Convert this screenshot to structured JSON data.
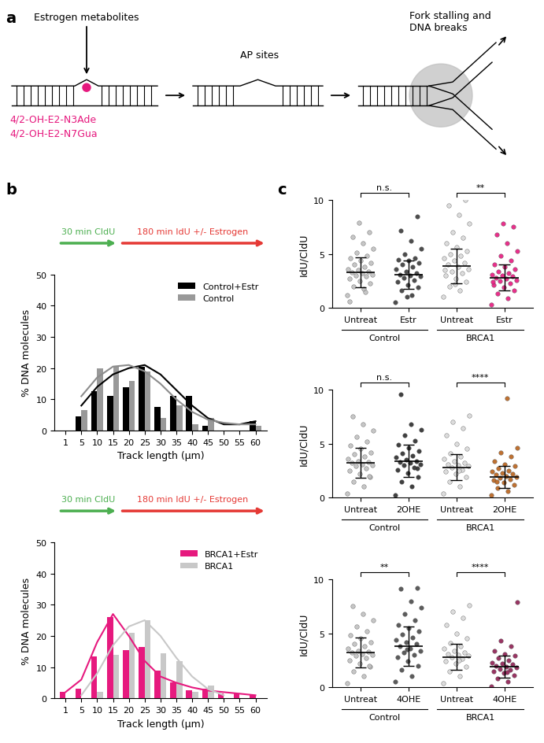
{
  "panel_labels": [
    "a",
    "b",
    "c"
  ],
  "diagram": {
    "top_label": "Estrogen metabolites",
    "adducts": [
      "4/2-OH-E2-N3Ade",
      "4/2-OH-E2-N7Gua"
    ],
    "middle_label": "AP sites",
    "right_label": "Fork stalling and\nDNA breaks"
  },
  "chart_data": [
    {
      "type": "bar",
      "annotations": [
        "30 min CldU",
        "180 min IdU +/- Estrogen"
      ],
      "x_label": "Track length (μm)",
      "y_label": "% DNA molecules",
      "categories": [
        "1",
        "5",
        "10",
        "15",
        "20",
        "25",
        "30",
        "35",
        "40",
        "45",
        "50",
        "55",
        "60"
      ],
      "series": [
        {
          "name": "Control+Estr",
          "type": "bar",
          "color": "#000000",
          "values": [
            0,
            4.5,
            12.5,
            11,
            14,
            20.5,
            7.5,
            11,
            11,
            1.5,
            0,
            0,
            3
          ]
        },
        {
          "name": "Control",
          "type": "bar",
          "color": "#999999",
          "values": [
            0,
            6.5,
            20,
            20.5,
            16,
            19,
            4,
            8,
            2,
            4,
            0,
            0,
            1.5
          ]
        },
        {
          "type": "line",
          "color": "#000000",
          "values": [
            null,
            8,
            14,
            18,
            20,
            21,
            18,
            13,
            8,
            4,
            2,
            2,
            3
          ]
        },
        {
          "type": "line",
          "color": "#8c8c8c",
          "values": [
            null,
            11,
            17,
            20.5,
            21,
            19,
            15,
            10,
            6,
            3.5,
            2.5,
            2,
            2
          ]
        }
      ],
      "ylim": [
        0,
        50
      ],
      "yticks": [
        0,
        10,
        20,
        30,
        40,
        50
      ],
      "legend": "upper right"
    },
    {
      "type": "bar",
      "annotations": [
        "30 min CldU",
        "180 min IdU +/- Estrogen"
      ],
      "x_label": "Track length (μm)",
      "y_label": "% DNA molecules",
      "categories": [
        "1",
        "5",
        "10",
        "15",
        "20",
        "25",
        "30",
        "35",
        "40",
        "45",
        "50",
        "55",
        "60"
      ],
      "series": [
        {
          "name": "BRCA1+Estr",
          "type": "bar",
          "color": "#e6197e",
          "values": [
            2,
            3,
            13.5,
            26,
            15.5,
            16.5,
            9,
            5,
            2.5,
            3,
            1.5,
            1.5,
            1
          ]
        },
        {
          "name": "BRCA1",
          "type": "bar",
          "color": "#c8c8c8",
          "values": [
            0,
            0,
            2,
            14,
            21,
            25,
            14.5,
            12,
            2,
            4,
            0,
            0,
            0
          ]
        },
        {
          "type": "line",
          "color": "#e6197e",
          "values": [
            2,
            6,
            18,
            27,
            20,
            12,
            7,
            5,
            3.5,
            2.5,
            2,
            1.5,
            1
          ]
        },
        {
          "type": "line",
          "color": "#c8c8c8",
          "values": [
            null,
            1,
            8,
            17,
            23,
            25,
            20,
            13,
            7,
            3,
            1,
            null,
            null
          ]
        }
      ],
      "ylim": [
        0,
        50
      ],
      "yticks": [
        0,
        10,
        20,
        30,
        40,
        50
      ],
      "legend": "upper right"
    },
    {
      "type": "dot_plot",
      "y_label": "IdU/CldU",
      "categories": [
        "Untreat",
        "Estr",
        "Untreat",
        "Estr"
      ],
      "group_labels": [
        "Control",
        "BRCA1"
      ],
      "colors": [
        "#c0c0c0",
        "#3a3a3a",
        "#d9d9d9",
        "#e6197e"
      ],
      "values": [
        [
          1.2,
          1.8,
          2.0,
          2.3,
          2.5,
          2.7,
          2.9,
          3.0,
          3.1,
          3.2,
          3.3,
          3.4,
          3.5,
          3.6,
          3.8,
          4.0,
          4.2,
          4.4,
          4.6,
          4.8,
          5.1,
          5.5,
          6.0,
          6.6,
          7.0,
          7.9,
          0.6,
          1.5
        ],
        [
          0.5,
          1.2,
          1.6,
          1.9,
          2.1,
          2.4,
          2.6,
          2.8,
          2.9,
          3.0,
          3.1,
          3.2,
          3.4,
          3.6,
          3.8,
          4.0,
          4.2,
          4.4,
          4.5,
          4.6,
          5.0,
          5.5,
          6.2,
          7.2,
          8.5,
          1.0
        ],
        [
          1.0,
          1.6,
          2.0,
          2.4,
          2.7,
          3.0,
          3.2,
          3.4,
          3.6,
          3.8,
          4.0,
          4.2,
          4.4,
          4.6,
          4.8,
          5.0,
          5.3,
          5.6,
          6.0,
          6.5,
          7.0,
          7.8,
          8.6,
          9.5,
          10.0,
          2.2,
          3.5
        ],
        [
          0.3,
          0.9,
          1.3,
          1.6,
          1.9,
          2.1,
          2.3,
          2.5,
          2.6,
          2.7,
          2.8,
          2.9,
          3.0,
          3.1,
          3.2,
          3.4,
          3.6,
          3.8,
          4.0,
          4.4,
          4.8,
          5.3,
          6.0,
          6.8,
          7.5,
          7.8,
          2.4
        ]
      ],
      "mean": [
        3.3,
        3.1,
        3.9,
        2.8
      ],
      "sd": [
        1.4,
        1.3,
        1.6,
        1.2
      ],
      "significance": [
        {
          "pair": [
            0,
            1
          ],
          "label": "n.s."
        },
        {
          "pair": [
            2,
            3
          ],
          "label": "**"
        }
      ],
      "ylim": [
        0,
        10
      ],
      "yticks": [
        0,
        5,
        10
      ]
    },
    {
      "type": "dot_plot",
      "y_label": "IdU/CldU",
      "categories": [
        "Untreat",
        "2OHE",
        "Untreat",
        "2OHE"
      ],
      "group_labels": [
        "Control",
        "BRCA1"
      ],
      "colors": [
        "#c0c0c0",
        "#2b2b2b",
        "#d9d9d9",
        "#b8621b"
      ],
      "values": [
        [
          0.4,
          1.0,
          1.5,
          1.9,
          2.2,
          2.5,
          2.7,
          2.9,
          3.0,
          3.1,
          3.2,
          3.3,
          3.4,
          3.6,
          3.8,
          4.0,
          4.2,
          4.5,
          4.8,
          5.2,
          5.6,
          6.2,
          6.8,
          7.5,
          2.0
        ],
        [
          0.2,
          1.0,
          1.5,
          1.9,
          2.3,
          2.6,
          2.8,
          3.0,
          3.1,
          3.2,
          3.3,
          3.4,
          3.5,
          3.7,
          3.9,
          4.1,
          4.3,
          4.6,
          4.9,
          5.3,
          5.8,
          6.3,
          6.8,
          9.6,
          2.7
        ],
        [
          0.4,
          1.0,
          1.5,
          1.9,
          2.2,
          2.4,
          2.6,
          2.8,
          2.9,
          3.0,
          3.1,
          3.2,
          3.4,
          3.6,
          3.8,
          4.1,
          4.5,
          5.0,
          5.8,
          6.4,
          7.0,
          7.6,
          2.5
        ],
        [
          0.2,
          0.6,
          0.9,
          1.2,
          1.4,
          1.6,
          1.7,
          1.8,
          1.9,
          2.0,
          2.1,
          2.2,
          2.3,
          2.4,
          2.5,
          2.7,
          2.9,
          3.1,
          3.4,
          3.8,
          4.2,
          4.6,
          9.2,
          1.5
        ]
      ],
      "mean": [
        3.2,
        3.4,
        2.8,
        1.9
      ],
      "sd": [
        1.4,
        1.5,
        1.2,
        1.0
      ],
      "significance": [
        {
          "pair": [
            0,
            1
          ],
          "label": "n.s."
        },
        {
          "pair": [
            2,
            3
          ],
          "label": "****"
        }
      ],
      "ylim": [
        0,
        10
      ],
      "yticks": [
        0,
        5,
        10
      ]
    },
    {
      "type": "dot_plot",
      "y_label": "IdU/CldU",
      "categories": [
        "Untreat",
        "4OHE",
        "Untreat",
        "4OHE"
      ],
      "group_labels": [
        "Control",
        "BRCA1"
      ],
      "colors": [
        "#c0c0c0",
        "#4a4a4a",
        "#d9d9d9",
        "#8e1f52"
      ],
      "values": [
        [
          0.4,
          1.0,
          1.5,
          1.9,
          2.2,
          2.5,
          2.7,
          2.9,
          3.0,
          3.1,
          3.2,
          3.3,
          3.4,
          3.6,
          3.8,
          4.0,
          4.2,
          4.5,
          4.8,
          5.2,
          5.6,
          6.2,
          6.8,
          7.5,
          2.0
        ],
        [
          0.5,
          1.0,
          1.6,
          2.0,
          2.4,
          2.8,
          3.0,
          3.2,
          3.4,
          3.6,
          3.8,
          4.0,
          4.2,
          4.4,
          4.6,
          4.9,
          5.2,
          5.5,
          5.8,
          6.2,
          6.8,
          7.4,
          8.0,
          9.1,
          9.2,
          3.5
        ],
        [
          0.4,
          1.0,
          1.5,
          1.9,
          2.2,
          2.4,
          2.6,
          2.8,
          2.9,
          3.0,
          3.1,
          3.2,
          3.4,
          3.6,
          3.8,
          4.1,
          4.5,
          5.0,
          5.8,
          6.4,
          7.0,
          7.6,
          2.5
        ],
        [
          0.1,
          0.5,
          0.8,
          1.1,
          1.3,
          1.5,
          1.6,
          1.7,
          1.8,
          1.9,
          2.0,
          2.1,
          2.2,
          2.3,
          2.5,
          2.7,
          2.9,
          3.1,
          3.4,
          3.8,
          4.3,
          7.9,
          1.4
        ]
      ],
      "mean": [
        3.2,
        3.8,
        2.8,
        1.9
      ],
      "sd": [
        1.4,
        1.8,
        1.2,
        1.0
      ],
      "significance": [
        {
          "pair": [
            0,
            1
          ],
          "label": "**"
        },
        {
          "pair": [
            2,
            3
          ],
          "label": "****"
        }
      ],
      "ylim": [
        0,
        10
      ],
      "yticks": [
        0,
        5,
        10
      ]
    }
  ]
}
